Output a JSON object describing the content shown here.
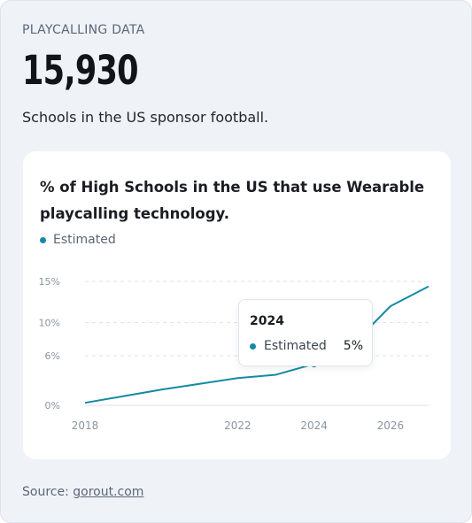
{
  "header": {
    "kicker": "PLAYCALLING DATA",
    "big_number": "15,930",
    "subtitle": "Schools in the US sponsor football."
  },
  "card": {
    "title": "% of High Schools in the US that use Wearable playcalling technology."
  },
  "tooltip": {
    "year": "2024",
    "series": "Estimated",
    "value": "5%"
  },
  "source": {
    "label": "Source:",
    "link": "gorout.com"
  },
  "colors": {
    "line": "#148aa4",
    "grid": "#dde2e8",
    "tick": "#8a94a3"
  },
  "chart_data": {
    "type": "line",
    "xlabel": "",
    "ylabel": "",
    "x_ticks": [
      "2018",
      "2022",
      "2024",
      "2026"
    ],
    "y_ticks": [
      "0%",
      "6%",
      "10%",
      "15%"
    ],
    "xlim": [
      2018,
      2027
    ],
    "ylim": [
      0,
      15
    ],
    "legend": "top-left",
    "grid": true,
    "series": [
      {
        "name": "Estimated",
        "x": [
          2018,
          2019,
          2020,
          2021,
          2022,
          2023,
          2024,
          2025,
          2026,
          2027
        ],
        "y": [
          0.3,
          1.1,
          1.9,
          2.6,
          3.3,
          3.7,
          5.0,
          7.3,
          12.0,
          14.4
        ]
      }
    ],
    "highlight": {
      "x": 2024,
      "y": 5.0
    }
  }
}
